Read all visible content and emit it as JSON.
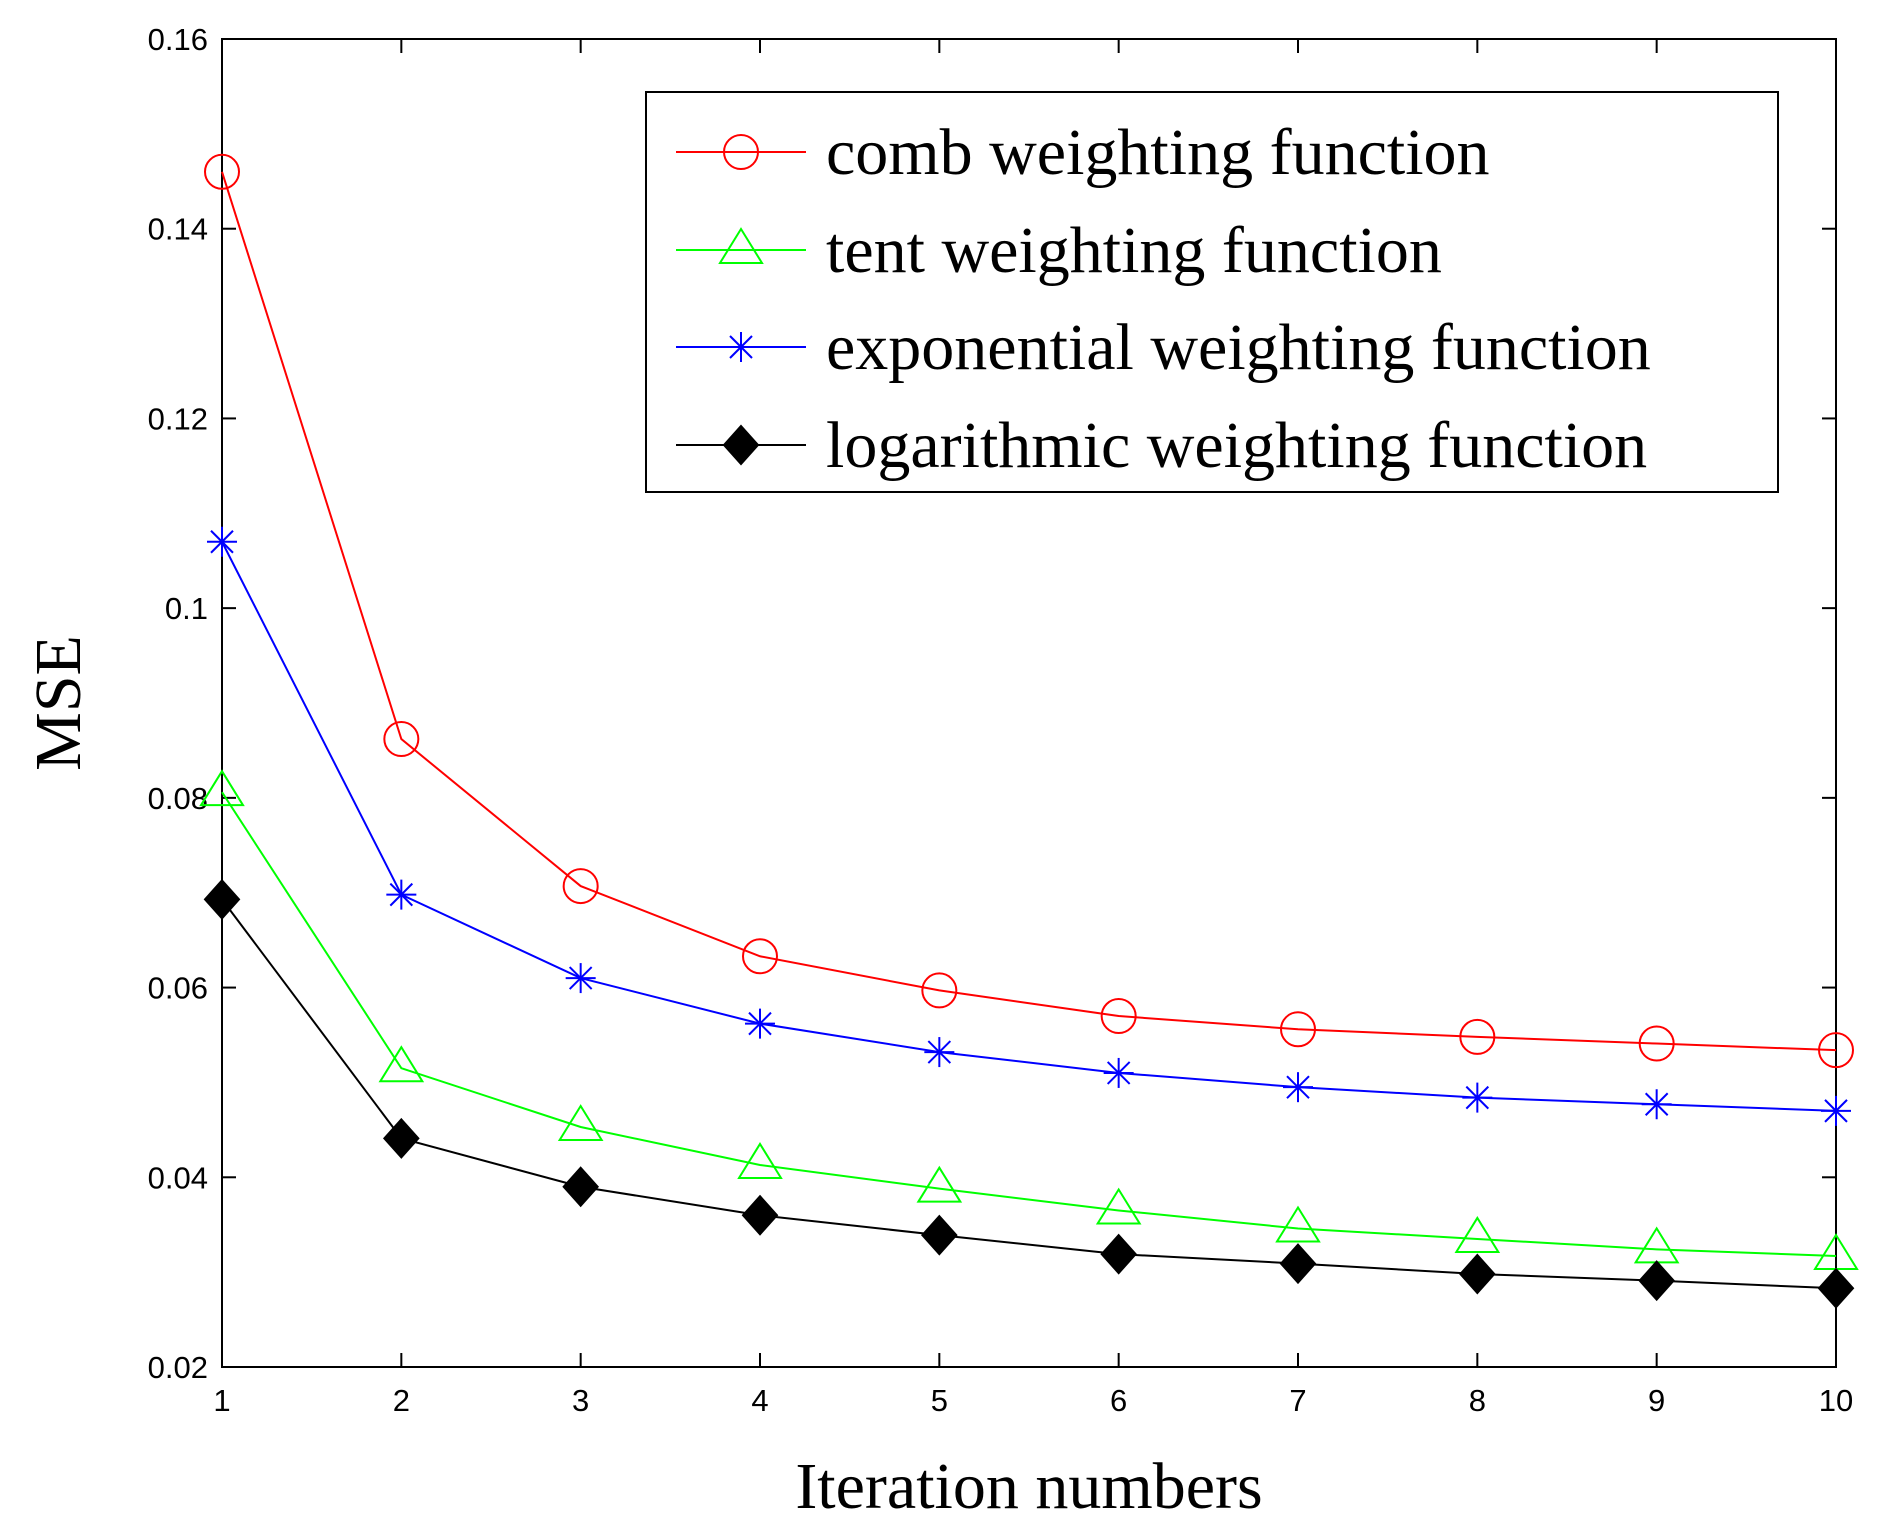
{
  "chart_data": {
    "type": "line",
    "x": [
      1,
      2,
      3,
      4,
      5,
      6,
      7,
      8,
      9,
      10
    ],
    "xlabel": "Iteration numbers",
    "ylabel": "MSE",
    "xlim": [
      1,
      10
    ],
    "ylim": [
      0.02,
      0.16
    ],
    "xticks": [
      1,
      2,
      3,
      4,
      5,
      6,
      7,
      8,
      9,
      10
    ],
    "yticks": [
      "0.02",
      "0.04",
      "0.06",
      "0.08",
      "0.1",
      "0.12",
      "0.14",
      "0.16"
    ],
    "grid": false,
    "legend_position": "top-right",
    "series": [
      {
        "name": "comb weighting function",
        "color": "#ff0000",
        "marker": "circle",
        "values": [
          0.146,
          0.0862,
          0.0707,
          0.0633,
          0.0597,
          0.057,
          0.0556,
          0.0548,
          0.0541,
          0.0534
        ]
      },
      {
        "name": "tent weighting function",
        "color": "#00ff00",
        "marker": "triangle",
        "values": [
          0.0806,
          0.0515,
          0.0453,
          0.0413,
          0.0388,
          0.0365,
          0.0346,
          0.0335,
          0.0324,
          0.0317
        ]
      },
      {
        "name": "exponential weighting function",
        "color": "#0000ff",
        "marker": "asterisk",
        "values": [
          0.107,
          0.0698,
          0.061,
          0.0562,
          0.0532,
          0.051,
          0.0495,
          0.0484,
          0.0477,
          0.047
        ]
      },
      {
        "name": "logarithmic weighting function",
        "color": "#000000",
        "marker": "diamond",
        "values": [
          0.0693,
          0.0441,
          0.039,
          0.036,
          0.0339,
          0.0319,
          0.0309,
          0.0298,
          0.0291,
          0.0283
        ]
      }
    ]
  }
}
